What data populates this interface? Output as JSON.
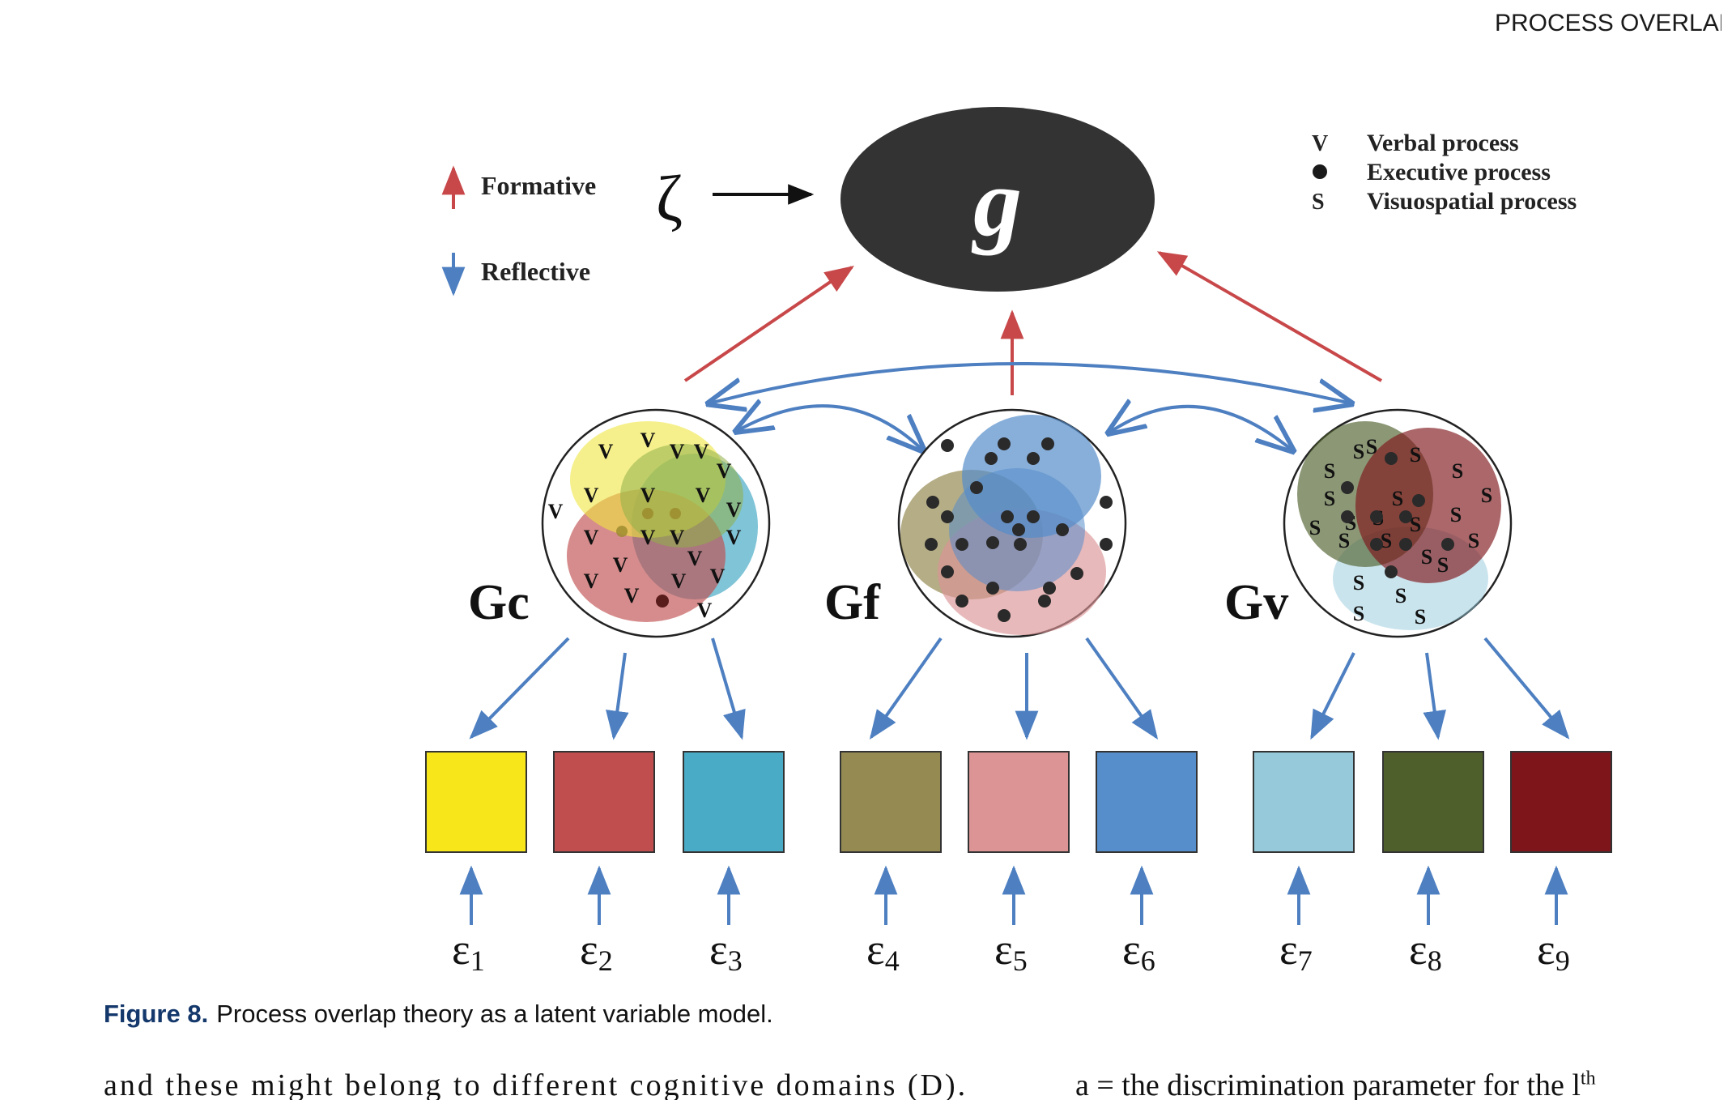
{
  "header": {
    "running_head": "PROCESS OVERLAP TH"
  },
  "figure": {
    "g_label": "g",
    "zeta_label": "ζ",
    "legend_left": {
      "formative": "Formative",
      "reflective": "Reflective"
    },
    "legend_right": {
      "verbal": "Verbal process",
      "executive": "Executive process",
      "visuospatial": "Visuospatial process",
      "verbal_symbol": "V",
      "visuospatial_symbol": "S"
    },
    "factors": {
      "gc": "Gc",
      "gf": "Gf",
      "gv": "Gv"
    },
    "verbal_marker": "V",
    "spatial_marker": "S",
    "indicators": [
      {
        "color": "#f6e61a",
        "error": "ε",
        "index": "1"
      },
      {
        "color": "#c04e4e",
        "error": "ε",
        "index": "2"
      },
      {
        "color": "#4aabc6",
        "error": "ε",
        "index": "3"
      },
      {
        "color": "#958a52",
        "error": "ε",
        "index": "4"
      },
      {
        "color": "#dc9495",
        "error": "ε",
        "index": "5"
      },
      {
        "color": "#568dcb",
        "error": "ε",
        "index": "6"
      },
      {
        "color": "#96cadb",
        "error": "ε",
        "index": "7"
      },
      {
        "color": "#4e5f2c",
        "error": "ε",
        "index": "8"
      },
      {
        "color": "#7e151a",
        "error": "ε",
        "index": "9"
      }
    ],
    "colors": {
      "formative": "#c8484a",
      "reflective": "#4d7fc1",
      "g_fill": "#333333"
    }
  },
  "caption": {
    "label": "Figure 8.",
    "text": "Process overlap theory as a latent variable model."
  },
  "body_text": {
    "left": "and these might belong to different cognitive domains (D).",
    "right": "a  = the discrimination parameter for the l",
    "superscript": "th"
  }
}
